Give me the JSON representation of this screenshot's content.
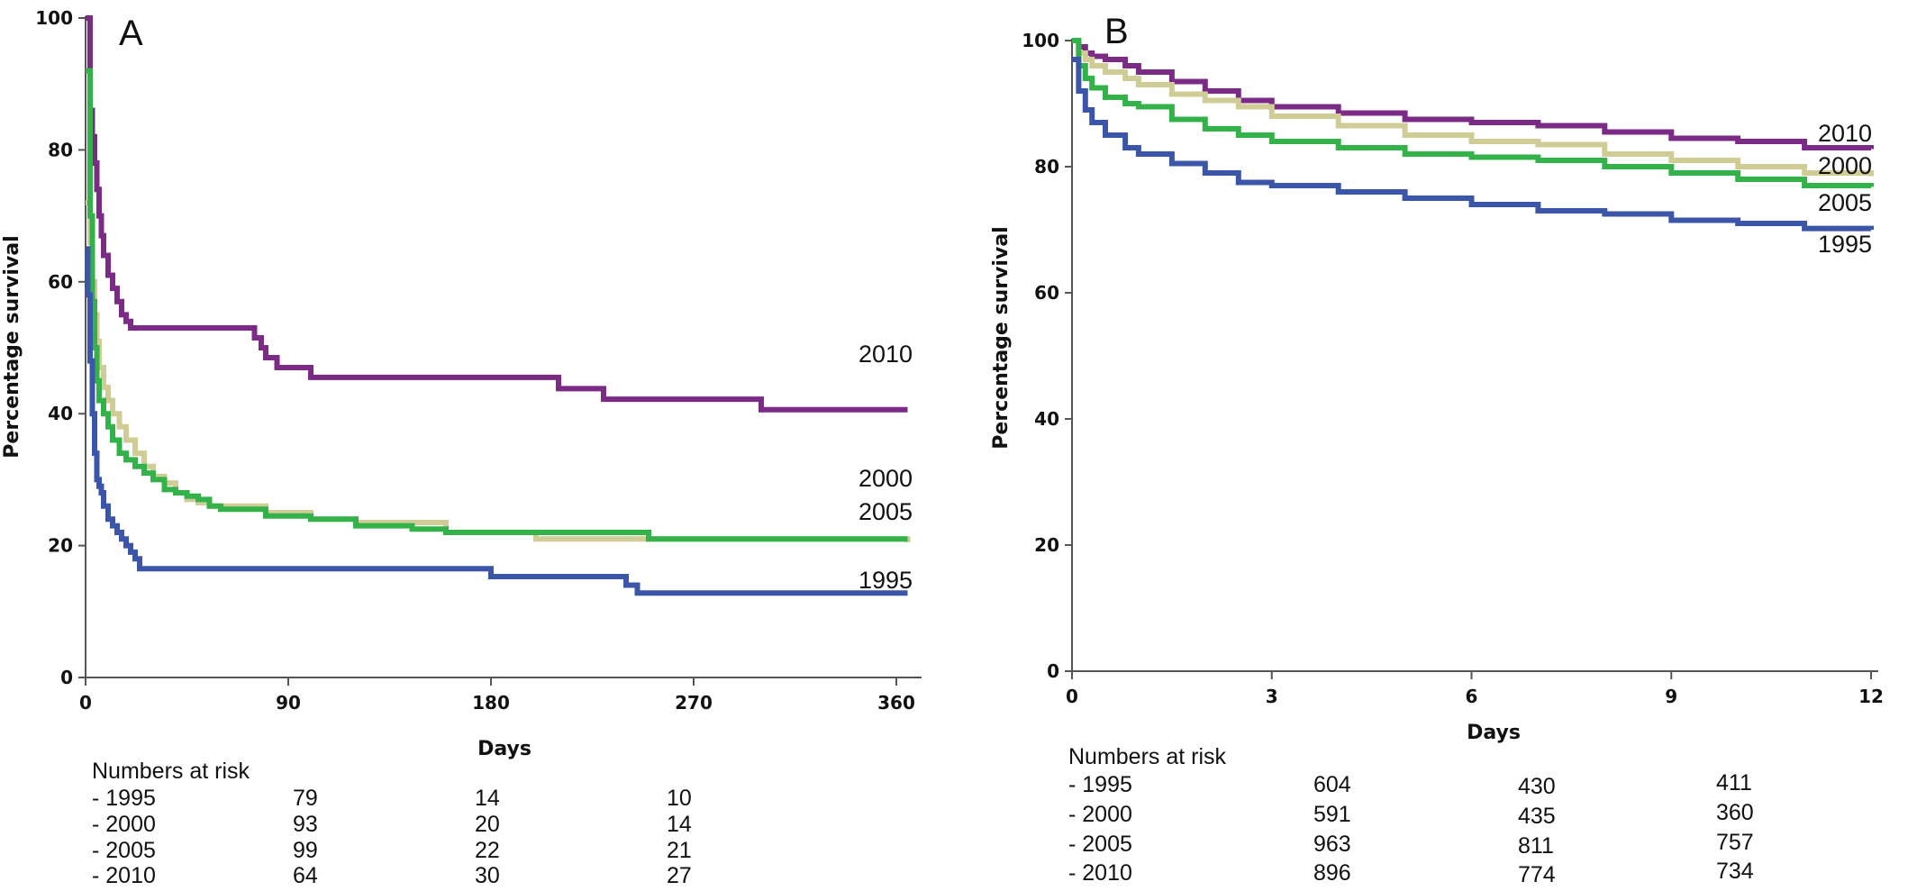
{
  "chart_data": [
    {
      "type": "line",
      "panel_label": "A",
      "xlabel": "Days",
      "ylabel": "Percentage survival",
      "xlim": [
        0,
        375
      ],
      "ylim": [
        0,
        100
      ],
      "xticks": [
        0,
        90,
        180,
        270,
        360
      ],
      "yticks": [
        0,
        20,
        40,
        60,
        80,
        100
      ],
      "series": [
        {
          "name": "2010",
          "color": "#7b2a85",
          "x": [
            0,
            2,
            3,
            4,
            5,
            6,
            7,
            8,
            10,
            12,
            14,
            16,
            18,
            20,
            25,
            65,
            75,
            78,
            80,
            85,
            100,
            150,
            180,
            210,
            230,
            300,
            365
          ],
          "y": [
            100,
            86,
            82,
            78,
            74,
            70,
            67,
            64,
            61,
            59,
            57,
            55,
            54,
            53,
            53,
            53,
            51.5,
            50,
            48.5,
            47,
            45.5,
            45.5,
            45.5,
            43.8,
            42.2,
            40.6,
            40.6
          ]
        },
        {
          "name": "2000",
          "color": "#cfcc96",
          "x": [
            0,
            2,
            3,
            4,
            5,
            6,
            8,
            10,
            12,
            15,
            18,
            22,
            26,
            30,
            35,
            40,
            45,
            50,
            55,
            60,
            80,
            100,
            120,
            160,
            200,
            245,
            300,
            365
          ],
          "y": [
            72,
            66,
            60,
            55,
            51,
            47,
            44,
            42,
            40,
            38,
            36,
            34,
            32,
            30.5,
            29.5,
            28,
            27,
            26.5,
            26,
            26,
            25,
            24,
            23.5,
            22,
            21,
            21,
            21,
            20.5
          ]
        },
        {
          "name": "2005",
          "color": "#33b24a",
          "x": [
            0,
            2,
            3,
            4,
            5,
            6,
            8,
            10,
            12,
            15,
            18,
            22,
            26,
            30,
            35,
            40,
            45,
            50,
            55,
            60,
            80,
            100,
            120,
            145,
            160,
            200,
            240,
            250,
            300,
            365
          ],
          "y": [
            92,
            70,
            57,
            50,
            45,
            42,
            40,
            38,
            36,
            34,
            33,
            32,
            31,
            30,
            28.5,
            28,
            27.5,
            27,
            26,
            25.5,
            24.5,
            24,
            23,
            22.5,
            22,
            22,
            22,
            21,
            21,
            21
          ]
        },
        {
          "name": "1995",
          "color": "#3b56a8",
          "x": [
            0,
            1,
            2,
            3,
            4,
            5,
            6,
            7,
            8,
            10,
            12,
            14,
            16,
            18,
            20,
            22,
            24,
            90,
            120,
            160,
            180,
            230,
            240,
            245,
            300,
            365
          ],
          "y": [
            65,
            58,
            48,
            40,
            34,
            30,
            29,
            28,
            26,
            24,
            23,
            22,
            21,
            20,
            19,
            18,
            16.5,
            16.5,
            16.5,
            16.5,
            15.3,
            15.3,
            14,
            12.8,
            12.8,
            12.8
          ]
        }
      ],
      "numbers_at_risk": {
        "title": "Numbers at risk",
        "rows": [
          {
            "label": "- 1995",
            "values": [
              "79",
              "14",
              "10"
            ]
          },
          {
            "label": "- 2000",
            "values": [
              "93",
              "20",
              "14"
            ]
          },
          {
            "label": "- 2005",
            "values": [
              "99",
              "22",
              "21"
            ]
          },
          {
            "label": "- 2010",
            "values": [
              "64",
              "30",
              "27"
            ]
          }
        ]
      }
    },
    {
      "type": "line",
      "panel_label": "B",
      "xlabel": "Days",
      "ylabel": "Percentage survival",
      "xlim": [
        0,
        12.5
      ],
      "ylim": [
        0,
        100
      ],
      "xticks": [
        0,
        3,
        6,
        9,
        12
      ],
      "yticks": [
        0,
        20,
        40,
        60,
        80,
        100
      ],
      "series": [
        {
          "name": "2010",
          "color": "#7b2a85",
          "x": [
            0,
            0.1,
            0.2,
            0.3,
            0.5,
            0.8,
            1.0,
            1.5,
            2.0,
            2.5,
            3.0,
            4.0,
            5.0,
            6.0,
            7.0,
            8.0,
            9.0,
            10.0,
            11.0,
            12.0
          ],
          "y": [
            100,
            99,
            98,
            97.5,
            97,
            96,
            95,
            93.5,
            92,
            90.5,
            89.5,
            88.5,
            87.5,
            87,
            86.5,
            85.5,
            84.5,
            84,
            83,
            82.8
          ]
        },
        {
          "name": "2000",
          "color": "#cfcc96",
          "x": [
            0,
            0.1,
            0.2,
            0.3,
            0.5,
            0.8,
            1.0,
            1.5,
            2.0,
            2.5,
            3.0,
            4.0,
            5.0,
            6.0,
            7.0,
            8.0,
            9.0,
            10.0,
            11.0,
            12.0
          ],
          "y": [
            100,
            98,
            97,
            96,
            95,
            94,
            93,
            91.5,
            90.5,
            89.5,
            88,
            86.5,
            85,
            84,
            83.5,
            82,
            81,
            80,
            79,
            78.5
          ]
        },
        {
          "name": "2005",
          "color": "#33b24a",
          "x": [
            0,
            0.1,
            0.2,
            0.3,
            0.5,
            0.8,
            1.0,
            1.5,
            2.0,
            2.5,
            3.0,
            4.0,
            5.0,
            6.0,
            7.0,
            8.0,
            9.0,
            10.0,
            11.0,
            12.0
          ],
          "y": [
            100,
            96,
            94,
            92.5,
            91,
            90,
            89.5,
            87.5,
            86,
            85,
            84,
            83,
            82,
            81.5,
            81,
            80,
            79,
            78,
            77,
            76.8
          ]
        },
        {
          "name": "1995",
          "color": "#3b56a8",
          "x": [
            0,
            0.1,
            0.2,
            0.3,
            0.5,
            0.8,
            1.0,
            1.5,
            2.0,
            2.5,
            3.0,
            4.0,
            5.0,
            6.0,
            7.0,
            8.0,
            9.0,
            10.0,
            11.0,
            12.0
          ],
          "y": [
            97,
            92,
            89,
            87,
            85,
            83,
            82,
            80.5,
            79,
            77.5,
            77,
            76,
            75,
            74,
            73,
            72.5,
            71.5,
            71,
            70.2,
            70
          ]
        }
      ],
      "numbers_at_risk": {
        "title": "Numbers at risk",
        "rows": [
          {
            "label": "- 1995",
            "values": [
              "604",
              "430",
              "411"
            ]
          },
          {
            "label": "- 2000",
            "values": [
              "591",
              "435",
              "360"
            ]
          },
          {
            "label": "- 2005",
            "values": [
              "963",
              "811",
              "757"
            ]
          },
          {
            "label": "- 2010",
            "values": [
              "896",
              "774",
              "734"
            ]
          }
        ]
      }
    }
  ]
}
